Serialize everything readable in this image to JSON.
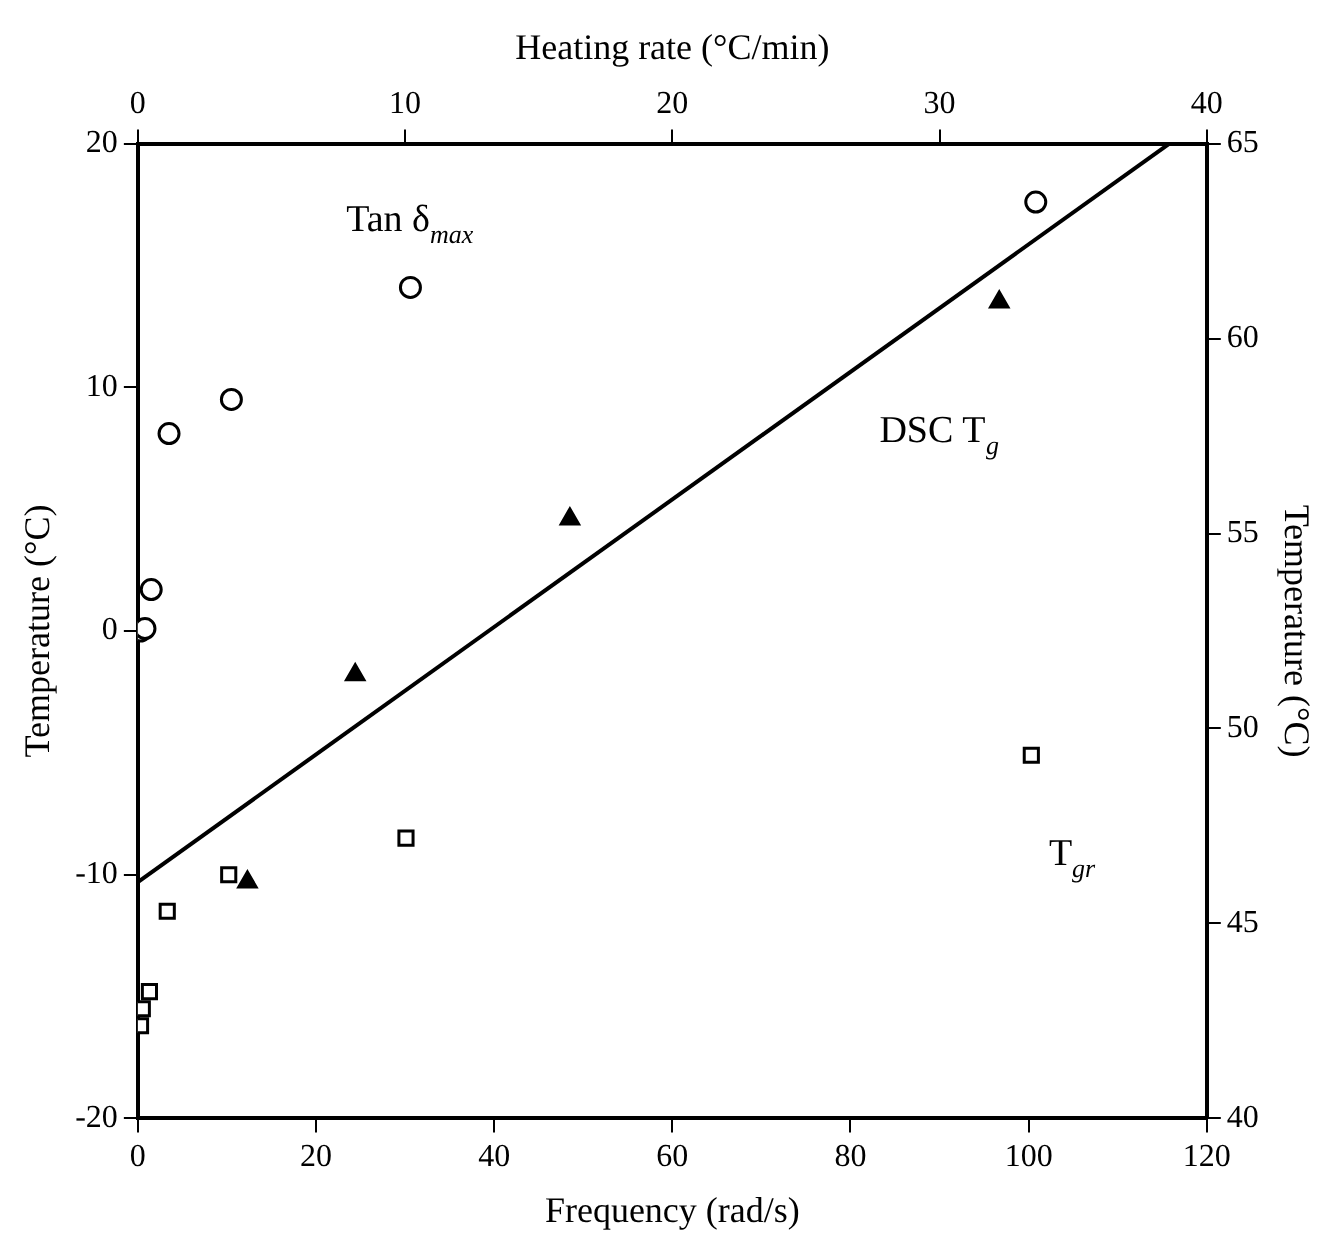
{
  "chart_data": {
    "type": "scatter",
    "xlabel": "Frequency (rad/s)",
    "ylabel": "Temperature (°C)",
    "y2label": "Temperature (°C)",
    "x2label": "Heating rate (°C/min)",
    "xlim": [
      0,
      120
    ],
    "xticks": [
      0,
      20,
      40,
      60,
      80,
      100,
      120
    ],
    "ylim": [
      -20,
      20
    ],
    "yticks": [
      -20,
      -10,
      0,
      10,
      20
    ],
    "y2lim": [
      40,
      65
    ],
    "y2ticks": [
      40,
      45,
      50,
      55,
      60,
      65
    ],
    "x2lim": [
      0,
      40
    ],
    "x2ticks": [
      0,
      10,
      20,
      30,
      40
    ],
    "series": [
      {
        "name": "Tan δ$_{max}$",
        "marker": "circle",
        "color": "#000000",
        "x": [
          0.3,
          0.8,
          1.5,
          3.5,
          10.5,
          30.6,
          100.8
        ],
        "values": [
          0,
          0.1,
          1.7,
          8.1,
          9.5,
          14.1,
          17.6
        ]
      },
      {
        "name": "DSC T$_{g}$",
        "marker": "triangle",
        "color": "#000000",
        "x": [
          12.3,
          24.4,
          48.5,
          96.7
        ],
        "values": [
          -10.3,
          -1.8,
          4.6,
          13.5
        ]
      },
      {
        "name": "T$_{gr}$",
        "marker": "square",
        "color": "#000000",
        "x": [
          0.3,
          0.5,
          1.3,
          3.3,
          10.2,
          30.1,
          100.3
        ],
        "values": [
          -16.2,
          -15.5,
          -14.8,
          -11.5,
          -10.0,
          -8.5,
          -5.1
        ]
      },
      {
        "type": "line",
        "marker": "none",
        "color": "#000000",
        "x": [
          0,
          115.8
        ],
        "values": [
          -10.3,
          20
        ]
      }
    ]
  }
}
